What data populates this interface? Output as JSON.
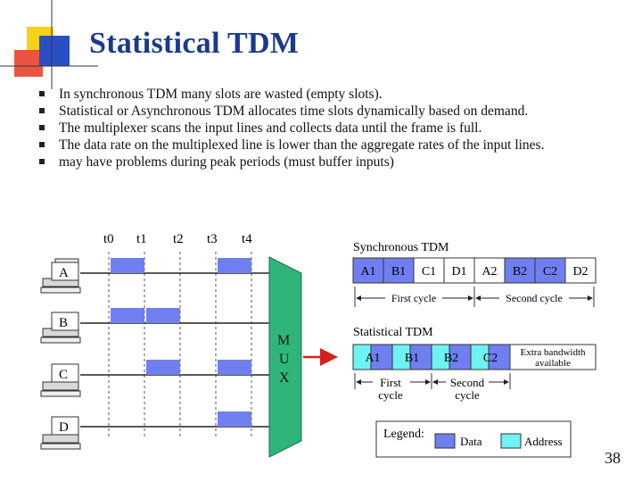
{
  "slide": {
    "title": "Statistical TDM",
    "page_number": "38",
    "bullets": [
      "In synchronous TDM many slots are wasted (empty slots).",
      "Statistical or Asynchronous TDM allocates time slots dynamically based on demand.",
      "The multiplexer scans the input lines and collects data until the frame is full.",
      "The data rate on the multiplexed line is lower than the aggregate rates of the input lines.",
      "may have problems during peak periods (must buffer inputs)"
    ]
  },
  "diagram": {
    "time_labels": [
      "t0",
      "t1",
      "t2",
      "t3",
      "t4"
    ],
    "inputs": [
      "A",
      "B",
      "C",
      "D"
    ],
    "mux_label": [
      "M",
      "U",
      "X"
    ],
    "sync": {
      "title": "Synchronous TDM",
      "slots": [
        "A1",
        "B1",
        "C1",
        "D1",
        "A2",
        "B2",
        "C2",
        "D2"
      ],
      "cycle_labels": [
        "First cycle",
        "Second cycle"
      ]
    },
    "stat": {
      "title": "Statistical TDM",
      "slots": [
        "A1",
        "B1",
        "B2",
        "C2"
      ],
      "extra_label": [
        "Extra bandwidth",
        "available"
      ],
      "cycle_labels": [
        [
          "First",
          "cycle"
        ],
        [
          "Second",
          "cycle"
        ]
      ]
    },
    "legend": {
      "title": "Legend:",
      "data_label": "Data",
      "address_label": "Address"
    },
    "colors": {
      "data": "#6f7ff0",
      "address": "#6ef2f2",
      "title": "#1a3a8c",
      "mux": "#2fb57a",
      "arrow": "#d42020",
      "logo_yellow": "#f7d21a",
      "logo_red": "#e8432f",
      "logo_blue": "#2a4fc4"
    }
  }
}
